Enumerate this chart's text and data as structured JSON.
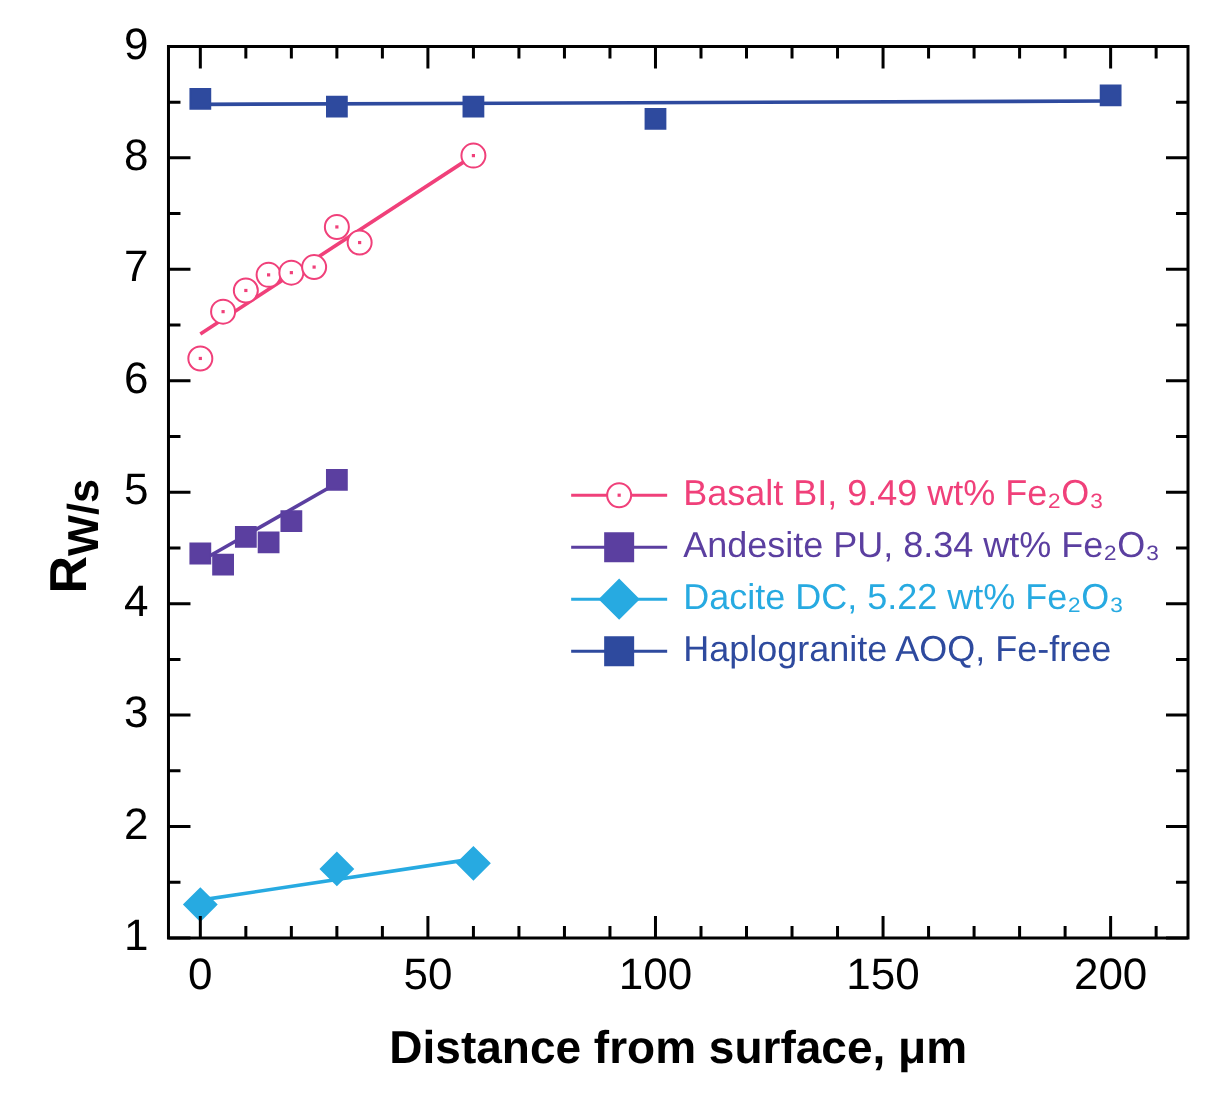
{
  "chart_data": {
    "type": "scatter",
    "xlabel": "Distance from surface, μm",
    "ylabel": "R$_{W/s}$",
    "xlim": [
      -7,
      217
    ],
    "ylim": [
      1,
      9
    ],
    "xticks": [
      0,
      {
        "value": 10,
        "label": null
      },
      {
        "value": 20,
        "label": null
      },
      {
        "value": 30,
        "label": null
      },
      {
        "value": 40,
        "label": null
      },
      50,
      {
        "value": 60,
        "label": null
      },
      {
        "value": 70,
        "label": null
      },
      {
        "value": 80,
        "label": null
      },
      {
        "value": 90,
        "label": null
      },
      100,
      {
        "value": 110,
        "label": null
      },
      {
        "value": 120,
        "label": null
      },
      {
        "value": 130,
        "label": null
      },
      {
        "value": 140,
        "label": null
      },
      150,
      {
        "value": 160,
        "label": null
      },
      {
        "value": 170,
        "label": null
      },
      {
        "value": 180,
        "label": null
      },
      {
        "value": 190,
        "label": null
      },
      200,
      {
        "value": 210,
        "label": null
      }
    ],
    "yticks": [
      1,
      {
        "value": 1.5,
        "label": null
      },
      2,
      {
        "value": 2.5,
        "label": null
      },
      3,
      {
        "value": 3.5,
        "label": null
      },
      4,
      {
        "value": 4.5,
        "label": null
      },
      5,
      {
        "value": 5.5,
        "label": null
      },
      6,
      {
        "value": 6.5,
        "label": null
      },
      7,
      {
        "value": 7.5,
        "label": null
      },
      8,
      {
        "value": 8.5,
        "label": null
      },
      9
    ],
    "legend": "right",
    "grid": false,
    "series": [
      {
        "name": "Basalt BI, 9.49 wt% Fe₂O₃",
        "color": "#f0407a",
        "marker": "circle",
        "x": [
          0,
          5,
          10,
          15,
          20,
          25,
          30,
          35,
          60
        ],
        "values": [
          6.2,
          6.62,
          6.81,
          6.95,
          6.97,
          7.02,
          7.38,
          7.24,
          8.02
        ]
      },
      {
        "name": "Andesite PU, 8.34 wt% Fe₂O₃",
        "color": "#5b3fa0",
        "marker": "square",
        "x": [
          0,
          5,
          10,
          15,
          20,
          30
        ],
        "values": [
          4.45,
          4.35,
          4.6,
          4.55,
          4.74,
          5.11
        ]
      },
      {
        "name": "Dacite DC, 5.22 wt% Fe₂O₃",
        "color": "#27aae1",
        "marker": "diamond",
        "x": [
          0,
          30,
          60
        ],
        "values": [
          1.3,
          1.62,
          1.67
        ]
      },
      {
        "name": "Haplogranite AOQ, Fe-free",
        "color": "#2e4a9e",
        "marker": "square",
        "x": [
          0,
          30,
          60,
          100,
          200
        ],
        "values": [
          8.53,
          8.46,
          8.46,
          8.35,
          8.56
        ]
      },
      {
        "type": "line",
        "color": "#f0407a",
        "x": [
          0,
          60
        ],
        "values": [
          6.42,
          8.02
        ]
      },
      {
        "type": "line",
        "color": "#5b3fa0",
        "x": [
          0,
          30
        ],
        "values": [
          4.38,
          5.08
        ]
      },
      {
        "type": "line",
        "color": "#27aae1",
        "x": [
          0,
          60
        ],
        "values": [
          1.34,
          1.71
        ]
      },
      {
        "type": "line",
        "color": "#2e4a9e",
        "x": [
          0,
          200
        ],
        "values": [
          8.48,
          8.51
        ]
      }
    ]
  }
}
